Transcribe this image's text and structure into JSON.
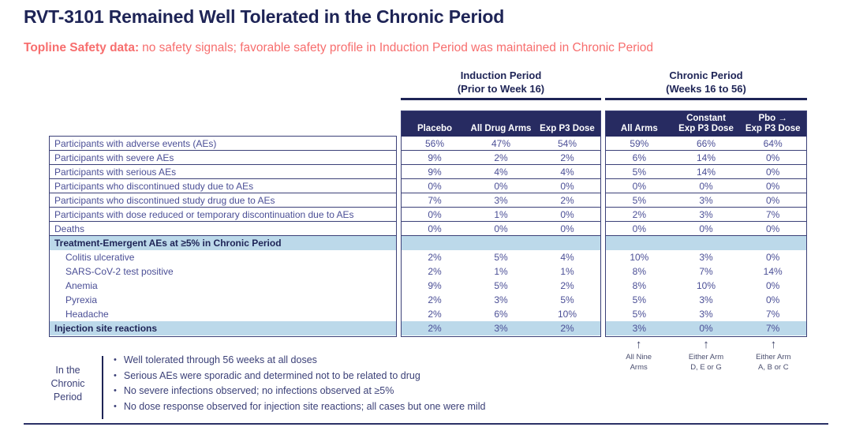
{
  "slide": {
    "title": "RVT-3101 Remained Well Tolerated in the Chronic Period",
    "subtitle_lead": "Topline Safety data:",
    "subtitle_rest": "no safety signals; favorable safety profile in Induction Period was maintained in Chronic Period"
  },
  "colors": {
    "navy": "#1e2456",
    "header_bg": "#272b61",
    "light_blue": "#bcd9ea",
    "coral": "#f76e6e",
    "border": "#3c4178",
    "table_text": "#4b4f96"
  },
  "table": {
    "groups": [
      {
        "title": "Induction Period",
        "subtitle": "(Prior to Week 16)",
        "columns": [
          {
            "l1": "",
            "l2": "Placebo"
          },
          {
            "l1": "",
            "l2": "All Drug Arms"
          },
          {
            "l1": "",
            "l2": "Exp P3 Dose"
          }
        ]
      },
      {
        "title": "Chronic Period",
        "subtitle": "(Weeks 16 to 56)",
        "columns": [
          {
            "l1": "",
            "l2": "All Arms"
          },
          {
            "l1": "Constant",
            "l2": "Exp P3 Dose"
          },
          {
            "l1": "Pbo →",
            "l2": "Exp P3 Dose"
          }
        ]
      }
    ],
    "rows": [
      {
        "type": "data",
        "label": "Participants with adverse events (AEs)",
        "induction": [
          "56%",
          "47%",
          "54%"
        ],
        "chronic": [
          "59%",
          "66%",
          "64%"
        ]
      },
      {
        "type": "data",
        "label": "Participants with severe AEs",
        "induction": [
          "9%",
          "2%",
          "2%"
        ],
        "chronic": [
          "6%",
          "14%",
          "0%"
        ]
      },
      {
        "type": "data",
        "label": "Participants with serious AEs",
        "induction": [
          "9%",
          "4%",
          "4%"
        ],
        "chronic": [
          "5%",
          "14%",
          "0%"
        ]
      },
      {
        "type": "data",
        "label": "Participants who discontinued study due to AEs",
        "induction": [
          "0%",
          "0%",
          "0%"
        ],
        "chronic": [
          "0%",
          "0%",
          "0%"
        ]
      },
      {
        "type": "data",
        "label": "Participants who discontinued study drug due to AEs",
        "induction": [
          "7%",
          "3%",
          "2%"
        ],
        "chronic": [
          "5%",
          "3%",
          "0%"
        ]
      },
      {
        "type": "data",
        "label": "Participants with dose reduced or temporary discontinuation due to AEs",
        "induction": [
          "0%",
          "1%",
          "0%"
        ],
        "chronic": [
          "2%",
          "3%",
          "7%"
        ]
      },
      {
        "type": "data",
        "label": "Deaths",
        "induction": [
          "0%",
          "0%",
          "0%"
        ],
        "chronic": [
          "0%",
          "0%",
          "0%"
        ]
      },
      {
        "type": "section",
        "label": "Treatment-Emergent AEs at ≥5% in Chronic Period",
        "induction": [
          "",
          "",
          ""
        ],
        "chronic": [
          "",
          "",
          ""
        ]
      },
      {
        "type": "sub",
        "label": "Colitis ulcerative",
        "induction": [
          "2%",
          "5%",
          "4%"
        ],
        "chronic": [
          "10%",
          "3%",
          "0%"
        ]
      },
      {
        "type": "sub",
        "label": "SARS-CoV-2 test positive",
        "induction": [
          "2%",
          "1%",
          "1%"
        ],
        "chronic": [
          "8%",
          "7%",
          "14%"
        ]
      },
      {
        "type": "sub",
        "label": "Anemia",
        "induction": [
          "9%",
          "5%",
          "2%"
        ],
        "chronic": [
          "8%",
          "10%",
          "0%"
        ]
      },
      {
        "type": "sub",
        "label": "Pyrexia",
        "induction": [
          "2%",
          "3%",
          "5%"
        ],
        "chronic": [
          "5%",
          "3%",
          "0%"
        ]
      },
      {
        "type": "sub",
        "label": "Headache",
        "induction": [
          "2%",
          "6%",
          "10%"
        ],
        "chronic": [
          "5%",
          "3%",
          "7%"
        ]
      },
      {
        "type": "highlight",
        "label": "Injection site reactions",
        "induction": [
          "2%",
          "3%",
          "2%"
        ],
        "chronic": [
          "3%",
          "0%",
          "7%"
        ]
      }
    ]
  },
  "arm_annotations": [
    {
      "arrow": "↑",
      "l1": "All Nine",
      "l2": "Arms"
    },
    {
      "arrow": "↑",
      "l1": "Either Arm",
      "l2": "D, E or G"
    },
    {
      "arrow": "↑",
      "l1": "Either Arm",
      "l2": "A, B or C"
    }
  ],
  "chronic_notes": {
    "label_l1": "In the",
    "label_l2": "Chronic",
    "label_l3": "Period",
    "bullet_glyph": "•",
    "bullets": [
      "Well tolerated through 56 weeks at all doses",
      "Serious AEs were sporadic and determined not to be related to drug",
      "No severe infections observed; no infections observed at ≥5%",
      "No dose response observed for injection site reactions; all cases but one were mild"
    ]
  }
}
